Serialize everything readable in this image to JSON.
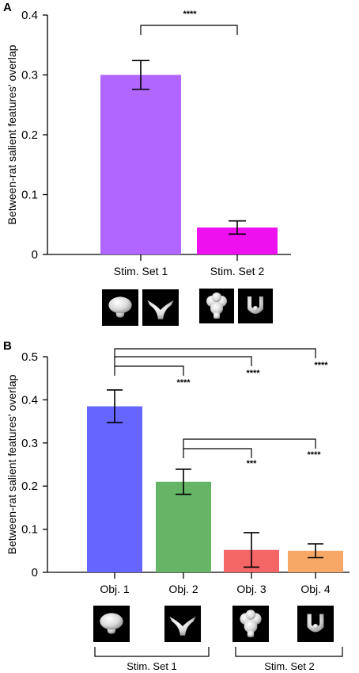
{
  "chart_data": [
    {
      "panel": "A",
      "type": "bar",
      "ylabel": "Between-rat salient features' overlap",
      "ylim": [
        0,
        0.4
      ],
      "yticks": [
        0,
        0.1,
        0.2,
        0.3,
        0.4
      ],
      "ytick_labels": [
        "0",
        "0.1",
        "0.2",
        "0.3",
        "0.4"
      ],
      "categories": [
        "Stim. Set 1",
        "Stim. Set 2"
      ],
      "values": [
        0.3,
        0.045
      ],
      "errors": [
        0.024,
        0.011
      ],
      "colors": [
        "#b066ff",
        "#ee10ee"
      ],
      "thumbnails": [
        [
          "mushroom-object",
          "y-shape-object"
        ],
        [
          "cluster-object",
          "cup-object"
        ]
      ],
      "comparisons": [
        {
          "from": 0,
          "to": 1,
          "label": "****"
        }
      ]
    },
    {
      "panel": "B",
      "type": "bar",
      "ylabel": "Between-rat salient features' overlap",
      "ylim": [
        0,
        0.5
      ],
      "yticks": [
        0,
        0.1,
        0.2,
        0.3,
        0.4,
        0.5
      ],
      "ytick_labels": [
        "0",
        "0.1",
        "0.2",
        "0.3",
        "0.4",
        "0.5"
      ],
      "categories": [
        "Obj. 1",
        "Obj. 2",
        "Obj. 3",
        "Obj. 4"
      ],
      "values": [
        0.385,
        0.21,
        0.052,
        0.05
      ],
      "errors": [
        0.038,
        0.029,
        0.04,
        0.016
      ],
      "colors": [
        "#6666ff",
        "#66b566",
        "#f56666",
        "#f7a866"
      ],
      "thumbnails": [
        "mushroom-object",
        "y-shape-object",
        "cluster-object",
        "cup-object"
      ],
      "comparisons": [
        {
          "from": 0,
          "to": 3,
          "label": "****"
        },
        {
          "from": 0,
          "to": 2,
          "label": "****"
        },
        {
          "from": 0,
          "to": 1,
          "label": "****"
        },
        {
          "from": 1,
          "to": 3,
          "label": "****"
        },
        {
          "from": 1,
          "to": 2,
          "label": "***"
        }
      ],
      "groups": [
        {
          "label": "Stim. Set 1",
          "members": [
            0,
            1
          ]
        },
        {
          "label": "Stim. Set 2",
          "members": [
            2,
            3
          ]
        }
      ]
    }
  ]
}
